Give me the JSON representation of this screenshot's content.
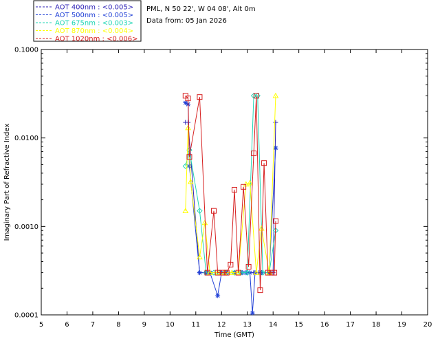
{
  "info": {
    "site": "PML, N 50 22', W 04 08', Alt 0m",
    "date": "Data from: 05 Jan 2026"
  },
  "chart_data": {
    "type": "line",
    "xlabel": "Time (GMT)",
    "ylabel": "Imaginary Part of Refractive Index",
    "x_ticks": [
      "5",
      "6",
      "7",
      "8",
      "9",
      "10",
      "11",
      "12",
      "13",
      "14",
      "15",
      "16",
      "17",
      "18",
      "19",
      "20"
    ],
    "y_ticks": [
      "0.0001",
      "0.0010",
      "0.0100",
      "0.1000"
    ],
    "xlim": [
      5,
      20
    ],
    "ylim": [
      0.0001,
      0.1
    ],
    "y_scale": "log",
    "grid": false,
    "legend_position": "top-left outside plot",
    "series": [
      {
        "name": "AOT  400nm : <0.005>",
        "color": "#2b1fb5",
        "marker": "plus",
        "x": [
          10.6,
          10.7,
          11.15,
          11.4,
          11.55,
          11.85,
          12.0,
          12.15,
          12.25,
          12.5,
          12.8,
          12.95,
          13.1,
          13.25,
          13.45,
          13.55,
          13.85,
          14.0,
          14.1
        ],
        "y": [
          0.015,
          0.015,
          0.0003,
          0.0003,
          0.0003,
          0.0003,
          0.0003,
          0.0003,
          0.0003,
          0.0003,
          0.0003,
          0.0003,
          0.0003,
          0.0003,
          0.0003,
          0.0003,
          0.0003,
          0.0003,
          0.015
        ]
      },
      {
        "name": "AOT  500nm : <0.005>",
        "color": "#1f3fd6",
        "marker": "star",
        "x": [
          10.6,
          10.7,
          10.75,
          11.15,
          11.4,
          11.55,
          11.85,
          12.0,
          12.15,
          12.5,
          12.8,
          12.95,
          13.1,
          13.2,
          13.3,
          13.55,
          13.85,
          14.1
        ],
        "y": [
          0.025,
          0.024,
          0.0048,
          0.0003,
          0.0003,
          0.0003,
          0.000165,
          0.0003,
          0.0003,
          0.0003,
          0.0003,
          0.0003,
          0.0003,
          0.000105,
          0.0003,
          0.0003,
          0.0003,
          0.0077
        ]
      },
      {
        "name": "AOT  675nm : <0.003>",
        "color": "#1fd6b4",
        "marker": "diamond",
        "x": [
          10.6,
          10.75,
          11.15,
          11.4,
          11.7,
          11.9,
          12.2,
          12.5,
          12.75,
          13.0,
          13.25,
          13.4,
          13.6,
          13.85,
          14.1
        ],
        "y": [
          0.0048,
          0.0073,
          0.0015,
          0.0003,
          0.0003,
          0.0003,
          0.0003,
          0.0003,
          0.0003,
          0.0003,
          0.03,
          0.03,
          0.0003,
          0.0003,
          0.0009
        ]
      },
      {
        "name": "AOT  870nm : <0.004>",
        "color": "#ffff00",
        "marker": "triangle",
        "x": [
          10.6,
          10.7,
          10.8,
          11.15,
          11.35,
          11.55,
          11.85,
          12.1,
          12.4,
          12.65,
          12.95,
          13.1,
          13.35,
          13.55,
          13.85,
          14.1
        ],
        "y": [
          0.0015,
          0.013,
          0.0032,
          0.00045,
          0.0011,
          0.0003,
          0.0003,
          0.0003,
          0.0003,
          0.0003,
          0.003,
          0.0031,
          0.0003,
          0.00095,
          0.0003,
          0.03
        ]
      },
      {
        "name": "AOT 1020nm : <0.006>",
        "color": "#d61f1f",
        "marker": "square",
        "x": [
          10.6,
          10.7,
          10.75,
          11.15,
          11.45,
          11.7,
          11.85,
          12.05,
          12.2,
          12.35,
          12.5,
          12.65,
          12.85,
          13.05,
          13.25,
          13.35,
          13.5,
          13.65,
          13.8,
          13.95,
          14.05,
          14.1
        ],
        "y": [
          0.03,
          0.028,
          0.0061,
          0.029,
          0.0003,
          0.0015,
          0.0003,
          0.0003,
          0.0003,
          0.00037,
          0.0026,
          0.0003,
          0.0028,
          0.00035,
          0.0067,
          0.03,
          0.00019,
          0.0052,
          0.0003,
          0.0003,
          0.0003,
          0.00115
        ]
      }
    ]
  }
}
